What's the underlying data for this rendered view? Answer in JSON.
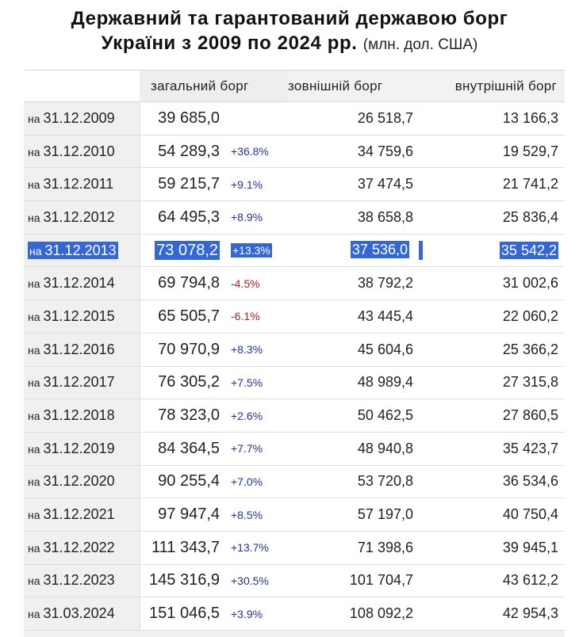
{
  "title": {
    "line1": "Державний та гарантований державою борг",
    "line2": "України з 2009 по 2024 рр.",
    "unit": "(млн. дол. США)"
  },
  "columns": {
    "total": "загальний борг",
    "external": "зовнішній борг",
    "internal": "внутрішній борг"
  },
  "date_prefix": "на",
  "rows": [
    {
      "date": "31.12.2009",
      "total": "39 685,0",
      "change": "",
      "trend": "pos",
      "external": "26 518,7",
      "internal": "13 166,3"
    },
    {
      "date": "31.12.2010",
      "total": "54 289,3",
      "change": "+36.8%",
      "trend": "pos",
      "external": "34 759,6",
      "internal": "19 529,7"
    },
    {
      "date": "31.12.2011",
      "total": "59 215,7",
      "change": "+9.1%",
      "trend": "pos",
      "external": "37 474,5",
      "internal": "21 741,2"
    },
    {
      "date": "31.12.2012",
      "total": "64 495,3",
      "change": "+8.9%",
      "trend": "pos",
      "external": "38 658,8",
      "internal": "25 836,4"
    },
    {
      "date": "31.12.2013",
      "total": "73 078,2",
      "change": "+13.3%",
      "trend": "pos",
      "external": "37 536,0",
      "internal": "35 542,2",
      "selected": true
    },
    {
      "date": "31.12.2014",
      "total": "69 794,8",
      "change": "-4.5%",
      "trend": "neg",
      "external": "38 792,2",
      "internal": "31 002,6"
    },
    {
      "date": "31.12.2015",
      "total": "65 505,7",
      "change": "-6.1%",
      "trend": "neg",
      "external": "43 445,4",
      "internal": "22 060,2"
    },
    {
      "date": "31.12.2016",
      "total": "70 970,9",
      "change": "+8.3%",
      "trend": "pos",
      "external": "45 604,6",
      "internal": "25 366,2"
    },
    {
      "date": "31.12.2017",
      "total": "76 305,2",
      "change": "+7.5%",
      "trend": "pos",
      "external": "48 989,4",
      "internal": "27 315,8"
    },
    {
      "date": "31.12.2018",
      "total": "78 323,0",
      "change": "+2.6%",
      "trend": "pos",
      "external": "50 462,5",
      "internal": "27 860,5"
    },
    {
      "date": "31.12.2019",
      "total": "84 364,5",
      "change": "+7.7%",
      "trend": "pos",
      "external": "48 940,8",
      "internal": "35 423,7"
    },
    {
      "date": "31.12.2020",
      "total": "90 255,4",
      "change": "+7.0%",
      "trend": "pos",
      "external": "53 720,8",
      "internal": "36 534,6"
    },
    {
      "date": "31.12.2021",
      "total": "97 947,4",
      "change": "+8.5%",
      "trend": "pos",
      "external": "57 197,0",
      "internal": "40 750,4"
    },
    {
      "date": "31.12.2022",
      "total": "111 343,7",
      "change": "+13.7%",
      "trend": "pos",
      "external": "71 398,6",
      "internal": "39 945,1"
    },
    {
      "date": "31.12.2023",
      "total": "145 316,9",
      "change": "+30.5%",
      "trend": "pos",
      "external": "101 704,7",
      "internal": "43 612,2"
    },
    {
      "date": "31.03.2024",
      "total": "151 046,5",
      "change": "+3.9%",
      "trend": "pos",
      "external": "108 092,2",
      "internal": "42 954,3"
    }
  ],
  "colors": {
    "selection": "#3367d6",
    "positive_change": "#223399",
    "negative_change": "#aa2222"
  }
}
